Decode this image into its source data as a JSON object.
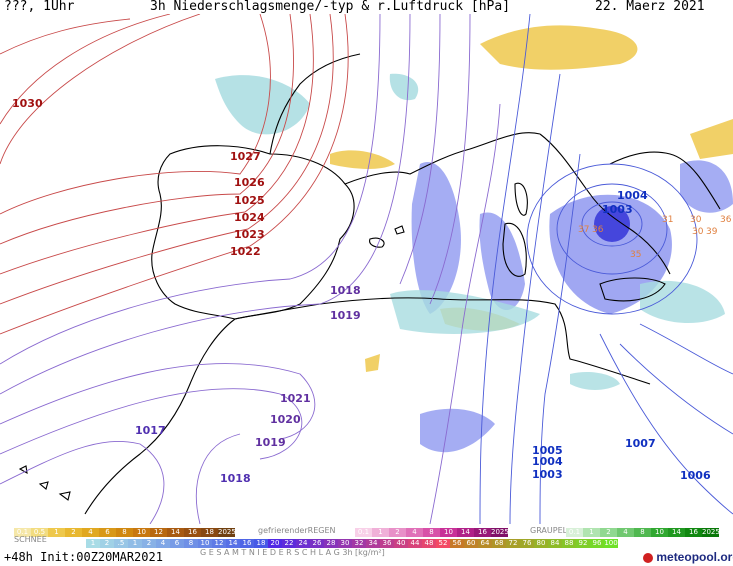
{
  "header": {
    "left": "???, 1Uhr",
    "title": "3h Niederschlagsmenge/-typ & r.Luftdruck [hPa]",
    "date": "22. Maerz 2021"
  },
  "map": {
    "pressure_labels_high": [
      "1030",
      "1027",
      "1026",
      "1025",
      "1024",
      "1023",
      "1022"
    ],
    "pressure_labels_mid": [
      "1018",
      "1019",
      "1021",
      "1020",
      "1019",
      "1017",
      "1018"
    ],
    "pressure_labels_low": [
      "1004",
      "1003",
      "1007",
      "1005",
      "1004",
      "1003",
      "1006"
    ],
    "precip_labels": [
      "31",
      "30",
      "36",
      "30",
      "39",
      "37",
      "36",
      "35"
    ]
  },
  "legend": {
    "snow_label": "SCHNEE",
    "freezing_rain_label": "gefrierenderREGEN",
    "graupel_label": "GRAUPEL",
    "total_label": "G E S A M T N I E D E R S C H L A G   3h  [kg/m²]",
    "snow_top_values": [
      "0.1",
      "0.5",
      "1",
      "2",
      "4",
      "6",
      "8",
      "10",
      "12",
      "14",
      "16",
      "18",
      "2025+"
    ],
    "freezing_values": [
      "0.1",
      "1",
      "2",
      "4",
      "8",
      "10",
      "14",
      "16",
      "2025+"
    ],
    "graupel_values": [
      "0.1",
      "1",
      "2",
      "4",
      "8",
      "10",
      "14",
      "16",
      "2025+"
    ],
    "total_values": [
      "1",
      "2",
      ".5",
      "1",
      "2",
      "4",
      "6",
      "8",
      "10",
      "12",
      "14",
      "16",
      "18",
      "20",
      "22",
      "24",
      "26",
      "28",
      "30",
      "32",
      "34",
      "36",
      "40",
      "44",
      "48",
      "52",
      "56",
      "60",
      "64",
      "68",
      "72",
      "76",
      "80",
      "84",
      "88",
      "92",
      "96",
      "100"
    ],
    "colors": {
      "snow": "#e8c64a",
      "freezing": "#f0a0d0",
      "graupel": "#90d890",
      "rain_light": "#a8dce0",
      "rain_mid": "#8890f0",
      "rain_heavy": "#3030d0"
    }
  },
  "footer": {
    "run": "+48h  Init:00Z20MAR2021",
    "brand": "meteopool.org"
  }
}
